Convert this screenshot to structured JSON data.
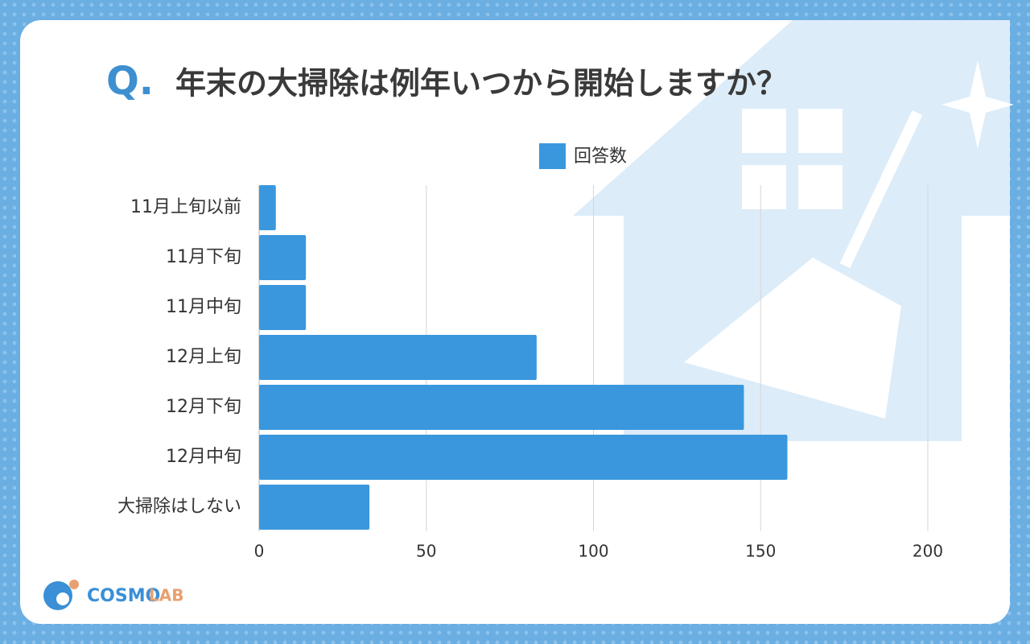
{
  "chart_data": {
    "type": "hbar",
    "title_prefix": "Q.",
    "title": "年末の大掃除は例年いつから開始しますか？",
    "categories": [
      "11月上旬以前",
      "11月下旬",
      "11月中旬",
      "12月上旬",
      "12月下旬",
      "12月中旬",
      "大掃除はしない"
    ],
    "series": [
      {
        "name": "回答数",
        "color": "#3a97dd",
        "values": [
          5,
          14,
          14,
          83,
          145,
          158,
          33
        ]
      }
    ],
    "xlim": [
      0,
      200
    ],
    "xticks": [
      0,
      50,
      100,
      150,
      200
    ],
    "grid": true,
    "legend": "top",
    "logo": {
      "main": "COSMO",
      "sub": "LAB"
    }
  }
}
